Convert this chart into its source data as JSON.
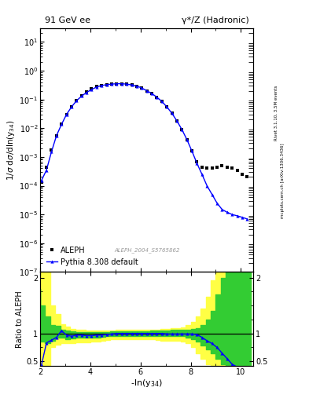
{
  "title_left": "91 GeV ee",
  "title_right": "γ*/Z (Hadronic)",
  "watermark": "ALEPH_2004_S5765862",
  "right_label_top": "Rivet 3.1.10, 3.5M events",
  "right_label_bot": "mcplots.cern.ch [arXiv:1306.3436]",
  "aleph_x": [
    2.05,
    2.25,
    2.45,
    2.65,
    2.85,
    3.05,
    3.25,
    3.45,
    3.65,
    3.85,
    4.05,
    4.25,
    4.45,
    4.65,
    4.85,
    5.05,
    5.25,
    5.45,
    5.65,
    5.85,
    6.05,
    6.25,
    6.45,
    6.65,
    6.85,
    7.05,
    7.25,
    7.45,
    7.65,
    7.85,
    8.05,
    8.25,
    8.45,
    8.65,
    8.85,
    9.05,
    9.25,
    9.45,
    9.65,
    9.85,
    10.05,
    10.25
  ],
  "aleph_y": [
    0.00013,
    0.00045,
    0.0018,
    0.0055,
    0.014,
    0.03,
    0.055,
    0.09,
    0.13,
    0.18,
    0.23,
    0.28,
    0.31,
    0.33,
    0.34,
    0.35,
    0.35,
    0.34,
    0.32,
    0.29,
    0.25,
    0.2,
    0.16,
    0.12,
    0.085,
    0.055,
    0.033,
    0.018,
    0.009,
    0.004,
    0.0016,
    0.0007,
    0.00045,
    0.0004,
    0.0004,
    0.00045,
    0.0005,
    0.00045,
    0.0004,
    0.00035,
    0.00025,
    0.0002
  ],
  "pythia_x": [
    2.05,
    2.25,
    2.45,
    2.65,
    2.85,
    3.05,
    3.25,
    3.45,
    3.65,
    3.85,
    4.05,
    4.25,
    4.45,
    4.65,
    4.85,
    5.05,
    5.25,
    5.45,
    5.65,
    5.85,
    6.05,
    6.25,
    6.45,
    6.65,
    6.85,
    7.05,
    7.25,
    7.45,
    7.65,
    7.85,
    8.05,
    8.25,
    8.45,
    8.65,
    8.85,
    9.05,
    9.25,
    9.45,
    9.65,
    9.85,
    10.05,
    10.25
  ],
  "pythia_y": [
    0.00015,
    0.00035,
    0.0015,
    0.0055,
    0.0135,
    0.03,
    0.055,
    0.09,
    0.13,
    0.175,
    0.22,
    0.27,
    0.305,
    0.325,
    0.34,
    0.35,
    0.35,
    0.34,
    0.32,
    0.29,
    0.25,
    0.2,
    0.16,
    0.12,
    0.085,
    0.055,
    0.033,
    0.018,
    0.009,
    0.004,
    0.0016,
    0.0006,
    0.00025,
    0.0001,
    5e-05,
    2.5e-05,
    1.5e-05,
    1.2e-05,
    1e-05,
    9e-06,
    8e-06,
    7e-06
  ],
  "ratio_x": [
    2.05,
    2.25,
    2.45,
    2.65,
    2.85,
    3.05,
    3.25,
    3.45,
    3.65,
    3.85,
    4.05,
    4.25,
    4.45,
    4.65,
    4.85,
    5.05,
    5.25,
    5.45,
    5.65,
    5.85,
    6.05,
    6.25,
    6.45,
    6.65,
    6.85,
    7.05,
    7.25,
    7.45,
    7.65,
    7.85,
    8.05,
    8.25,
    8.45,
    8.65,
    8.85,
    9.05,
    9.25,
    9.45,
    9.65,
    9.85
  ],
  "ratio_y": [
    0.43,
    0.83,
    0.88,
    0.93,
    1.05,
    0.97,
    0.95,
    0.97,
    0.97,
    0.96,
    0.96,
    0.97,
    0.97,
    0.98,
    0.99,
    1.0,
    1.0,
    1.0,
    1.0,
    1.0,
    1.0,
    1.0,
    1.0,
    1.0,
    1.0,
    0.99,
    0.99,
    0.99,
    0.99,
    0.99,
    0.99,
    0.98,
    0.93,
    0.87,
    0.82,
    0.75,
    0.65,
    0.55,
    0.45,
    0.4
  ],
  "green_band_x": [
    2.0,
    2.2,
    2.4,
    2.6,
    2.8,
    3.0,
    3.2,
    3.4,
    3.6,
    3.8,
    4.0,
    4.2,
    4.4,
    4.6,
    4.8,
    5.0,
    5.2,
    5.4,
    5.6,
    5.8,
    6.0,
    6.2,
    6.4,
    6.6,
    6.8,
    7.0,
    7.2,
    7.4,
    7.6,
    7.8,
    8.0,
    8.2,
    8.4,
    8.6,
    8.8,
    9.0,
    9.2,
    9.4,
    9.6,
    9.8,
    10.0,
    10.2,
    10.4
  ],
  "green_band_lo": [
    0.9,
    0.85,
    0.82,
    0.87,
    0.93,
    0.92,
    0.9,
    0.91,
    0.92,
    0.92,
    0.92,
    0.92,
    0.93,
    0.94,
    0.95,
    0.96,
    0.96,
    0.96,
    0.96,
    0.96,
    0.96,
    0.96,
    0.96,
    0.96,
    0.96,
    0.95,
    0.95,
    0.95,
    0.95,
    0.95,
    0.93,
    0.9,
    0.85,
    0.78,
    0.72,
    0.65,
    0.55,
    0.45,
    0.42,
    0.42,
    0.42,
    0.42,
    0.42
  ],
  "green_band_hi": [
    1.8,
    1.5,
    1.3,
    1.15,
    1.13,
    1.07,
    1.05,
    1.04,
    1.03,
    1.03,
    1.03,
    1.03,
    1.03,
    1.03,
    1.03,
    1.04,
    1.04,
    1.04,
    1.04,
    1.04,
    1.04,
    1.04,
    1.04,
    1.05,
    1.05,
    1.05,
    1.05,
    1.06,
    1.06,
    1.06,
    1.07,
    1.08,
    1.1,
    1.15,
    1.25,
    1.4,
    1.7,
    2.0,
    2.1,
    2.1,
    2.1,
    2.1,
    2.1
  ],
  "yellow_band_x": [
    2.0,
    2.2,
    2.4,
    2.6,
    2.8,
    3.0,
    3.2,
    3.4,
    3.6,
    3.8,
    4.0,
    4.2,
    4.4,
    4.6,
    4.8,
    5.0,
    5.2,
    5.4,
    5.6,
    5.8,
    6.0,
    6.2,
    6.4,
    6.6,
    6.8,
    7.0,
    7.2,
    7.4,
    7.6,
    7.8,
    8.0,
    8.2,
    8.4,
    8.6,
    8.8,
    9.0,
    9.2,
    9.4,
    9.6,
    9.8,
    10.0,
    10.2,
    10.4
  ],
  "yellow_band_lo": [
    0.42,
    0.42,
    0.42,
    0.75,
    0.8,
    0.82,
    0.83,
    0.83,
    0.84,
    0.84,
    0.84,
    0.85,
    0.86,
    0.87,
    0.88,
    0.89,
    0.89,
    0.89,
    0.89,
    0.89,
    0.89,
    0.89,
    0.89,
    0.89,
    0.88,
    0.87,
    0.87,
    0.87,
    0.87,
    0.86,
    0.82,
    0.75,
    0.65,
    0.55,
    0.45,
    0.42,
    0.42,
    0.42,
    0.42,
    0.42,
    0.42,
    0.42,
    0.42
  ],
  "yellow_band_hi": [
    2.1,
    2.1,
    2.1,
    1.5,
    1.35,
    1.17,
    1.12,
    1.08,
    1.06,
    1.06,
    1.05,
    1.05,
    1.05,
    1.05,
    1.05,
    1.05,
    1.06,
    1.06,
    1.06,
    1.06,
    1.06,
    1.06,
    1.06,
    1.07,
    1.07,
    1.08,
    1.08,
    1.09,
    1.1,
    1.11,
    1.15,
    1.2,
    1.3,
    1.45,
    1.65,
    1.95,
    2.1,
    2.1,
    2.1,
    2.1,
    2.1,
    2.1,
    2.1
  ],
  "xlim": [
    2.0,
    10.5
  ],
  "ylim_main": [
    1e-07,
    30.0
  ],
  "ylim_ratio": [
    0.42,
    2.1
  ],
  "aleph_color": "black",
  "pythia_color": "blue",
  "green_color": "#33cc33",
  "yellow_color": "#ffff44",
  "bg_color": "white"
}
